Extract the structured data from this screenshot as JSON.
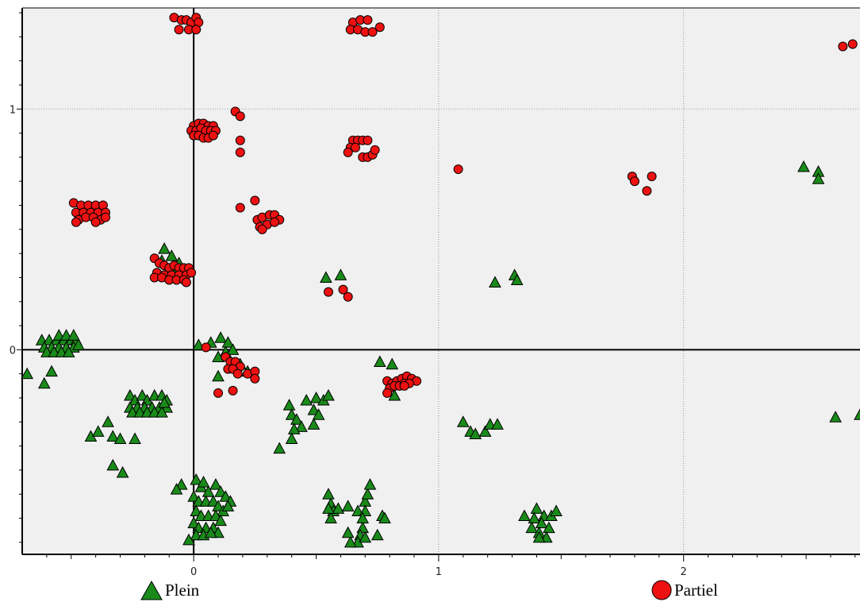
{
  "chart_data": {
    "type": "scatter",
    "title": "",
    "xlabel": "",
    "ylabel": "",
    "xlim": [
      -0.7,
      2.72
    ],
    "ylim": [
      -0.85,
      1.42
    ],
    "x_ticks": [
      0,
      1,
      2
    ],
    "x_tick_labels": [
      "0",
      "1",
      "2"
    ],
    "y_ticks": [
      0,
      1
    ],
    "y_tick_labels": [
      "0",
      "1"
    ],
    "grid": true,
    "legend_position": "bottom",
    "series": [
      {
        "name": "Plein",
        "marker": "triangle",
        "color": "#1a8a1a",
        "points": [
          [
            -0.68,
            -0.1
          ],
          [
            -0.61,
            -0.14
          ],
          [
            -0.58,
            -0.09
          ],
          [
            -0.62,
            0.04
          ],
          [
            -0.59,
            0.04
          ],
          [
            -0.56,
            0.04
          ],
          [
            -0.53,
            0.04
          ],
          [
            -0.5,
            0.04
          ],
          [
            -0.48,
            0.04
          ],
          [
            -0.61,
            0.01
          ],
          [
            -0.58,
            0.01
          ],
          [
            -0.55,
            0.01
          ],
          [
            -0.52,
            0.01
          ],
          [
            -0.49,
            0.01
          ],
          [
            -0.47,
            0.02
          ],
          [
            -0.6,
            -0.01
          ],
          [
            -0.57,
            -0.01
          ],
          [
            -0.54,
            -0.01
          ],
          [
            -0.51,
            -0.01
          ],
          [
            -0.55,
            0.06
          ],
          [
            -0.52,
            0.06
          ],
          [
            -0.49,
            0.06
          ],
          [
            -0.42,
            -0.36
          ],
          [
            -0.39,
            -0.34
          ],
          [
            -0.35,
            -0.3
          ],
          [
            -0.33,
            -0.36
          ],
          [
            -0.3,
            -0.37
          ],
          [
            -0.24,
            -0.37
          ],
          [
            -0.33,
            -0.48
          ],
          [
            -0.29,
            -0.51
          ],
          [
            -0.26,
            -0.19
          ],
          [
            -0.24,
            -0.21
          ],
          [
            -0.21,
            -0.19
          ],
          [
            -0.19,
            -0.21
          ],
          [
            -0.16,
            -0.19
          ],
          [
            -0.13,
            -0.19
          ],
          [
            -0.11,
            -0.21
          ],
          [
            -0.26,
            -0.24
          ],
          [
            -0.23,
            -0.24
          ],
          [
            -0.2,
            -0.24
          ],
          [
            -0.17,
            -0.24
          ],
          [
            -0.14,
            -0.24
          ],
          [
            -0.11,
            -0.24
          ],
          [
            -0.25,
            -0.26
          ],
          [
            -0.22,
            -0.26
          ],
          [
            -0.19,
            -0.26
          ],
          [
            -0.16,
            -0.26
          ],
          [
            -0.13,
            -0.26
          ],
          [
            -0.12,
            -0.22
          ],
          [
            -0.12,
            0.42
          ],
          [
            -0.09,
            0.39
          ],
          [
            -0.06,
            0.36
          ],
          [
            -0.13,
            0.37
          ],
          [
            -0.08,
            0.33
          ],
          [
            0.01,
            -0.54
          ],
          [
            0.03,
            -0.57
          ],
          [
            0.06,
            -0.59
          ],
          [
            0.09,
            -0.56
          ],
          [
            0.11,
            -0.59
          ],
          [
            0.13,
            -0.61
          ],
          [
            0.15,
            -0.63
          ],
          [
            0.0,
            -0.61
          ],
          [
            0.02,
            -0.63
          ],
          [
            0.05,
            -0.63
          ],
          [
            0.08,
            -0.63
          ],
          [
            0.1,
            -0.65
          ],
          [
            0.12,
            -0.67
          ],
          [
            0.14,
            -0.65
          ],
          [
            0.01,
            -0.67
          ],
          [
            0.03,
            -0.69
          ],
          [
            0.06,
            -0.69
          ],
          [
            0.09,
            -0.69
          ],
          [
            0.11,
            -0.71
          ],
          [
            0.0,
            -0.72
          ],
          [
            0.02,
            -0.74
          ],
          [
            0.05,
            -0.74
          ],
          [
            0.08,
            -0.74
          ],
          [
            0.1,
            -0.76
          ],
          [
            0.01,
            -0.77
          ],
          [
            0.04,
            -0.77
          ],
          [
            0.07,
            -0.76
          ],
          [
            -0.02,
            -0.79
          ],
          [
            -0.05,
            -0.56
          ],
          [
            -0.07,
            -0.58
          ],
          [
            0.04,
            -0.55
          ],
          [
            0.02,
            0.02
          ],
          [
            0.07,
            0.03
          ],
          [
            0.11,
            0.05
          ],
          [
            0.14,
            0.03
          ],
          [
            0.13,
            -0.01
          ],
          [
            0.1,
            -0.03
          ],
          [
            0.16,
            0.0
          ],
          [
            0.1,
            -0.11
          ],
          [
            0.19,
            -0.06
          ],
          [
            0.22,
            -0.09
          ],
          [
            0.35,
            -0.41
          ],
          [
            0.39,
            -0.23
          ],
          [
            0.4,
            -0.27
          ],
          [
            0.42,
            -0.29
          ],
          [
            0.44,
            -0.32
          ],
          [
            0.41,
            -0.33
          ],
          [
            0.4,
            -0.37
          ],
          [
            0.46,
            -0.21
          ],
          [
            0.5,
            -0.2
          ],
          [
            0.49,
            -0.25
          ],
          [
            0.51,
            -0.27
          ],
          [
            0.53,
            -0.21
          ],
          [
            0.55,
            -0.19
          ],
          [
            0.49,
            -0.31
          ],
          [
            0.55,
            -0.6
          ],
          [
            0.56,
            -0.64
          ],
          [
            0.57,
            -0.67
          ],
          [
            0.59,
            -0.66
          ],
          [
            0.56,
            -0.7
          ],
          [
            0.55,
            -0.66
          ],
          [
            0.63,
            -0.65
          ],
          [
            0.67,
            -0.67
          ],
          [
            0.7,
            -0.63
          ],
          [
            0.71,
            -0.6
          ],
          [
            0.72,
            -0.56
          ],
          [
            0.7,
            -0.67
          ],
          [
            0.69,
            -0.74
          ],
          [
            0.68,
            -0.77
          ],
          [
            0.67,
            -0.8
          ],
          [
            0.64,
            -0.8
          ],
          [
            0.63,
            -0.76
          ],
          [
            0.7,
            -0.78
          ],
          [
            0.75,
            -0.77
          ],
          [
            0.77,
            -0.69
          ],
          [
            0.78,
            -0.7
          ],
          [
            0.69,
            -0.7
          ],
          [
            0.54,
            0.3
          ],
          [
            0.6,
            0.31
          ],
          [
            0.76,
            -0.05
          ],
          [
            0.81,
            -0.06
          ],
          [
            0.82,
            -0.19
          ],
          [
            1.1,
            -0.3
          ],
          [
            1.13,
            -0.34
          ],
          [
            1.15,
            -0.35
          ],
          [
            1.19,
            -0.34
          ],
          [
            1.21,
            -0.31
          ],
          [
            1.24,
            -0.31
          ],
          [
            1.23,
            0.28
          ],
          [
            1.31,
            0.31
          ],
          [
            1.32,
            0.29
          ],
          [
            1.4,
            -0.66
          ],
          [
            1.43,
            -0.69
          ],
          [
            1.46,
            -0.69
          ],
          [
            1.48,
            -0.67
          ],
          [
            1.39,
            -0.7
          ],
          [
            1.42,
            -0.72
          ],
          [
            1.45,
            -0.74
          ],
          [
            1.38,
            -0.74
          ],
          [
            1.41,
            -0.76
          ],
          [
            1.44,
            -0.78
          ],
          [
            1.35,
            -0.69
          ],
          [
            1.41,
            -0.78
          ],
          [
            2.49,
            0.76
          ],
          [
            2.55,
            0.74
          ],
          [
            2.55,
            0.71
          ],
          [
            2.62,
            -0.28
          ],
          [
            2.72,
            -0.27
          ]
        ]
      },
      {
        "name": "Partiel",
        "marker": "circle",
        "color": "#ee1111",
        "points": [
          [
            -0.08,
            1.38
          ],
          [
            -0.05,
            1.37
          ],
          [
            -0.03,
            1.37
          ],
          [
            -0.01,
            1.36
          ],
          [
            0.01,
            1.38
          ],
          [
            0.02,
            1.36
          ],
          [
            -0.06,
            1.33
          ],
          [
            -0.02,
            1.33
          ],
          [
            0.01,
            1.33
          ],
          [
            0.0,
            0.93
          ],
          [
            0.02,
            0.94
          ],
          [
            0.04,
            0.94
          ],
          [
            0.06,
            0.93
          ],
          [
            0.08,
            0.93
          ],
          [
            -0.01,
            0.91
          ],
          [
            0.01,
            0.91
          ],
          [
            0.03,
            0.92
          ],
          [
            0.05,
            0.91
          ],
          [
            0.07,
            0.91
          ],
          [
            0.09,
            0.91
          ],
          [
            0.0,
            0.89
          ],
          [
            0.02,
            0.89
          ],
          [
            0.04,
            0.88
          ],
          [
            0.06,
            0.88
          ],
          [
            0.08,
            0.89
          ],
          [
            0.17,
            0.99
          ],
          [
            0.19,
            0.97
          ],
          [
            0.19,
            0.87
          ],
          [
            0.19,
            0.82
          ],
          [
            0.19,
            0.59
          ],
          [
            0.25,
            0.62
          ],
          [
            0.26,
            0.54
          ],
          [
            0.28,
            0.55
          ],
          [
            0.31,
            0.56
          ],
          [
            0.33,
            0.56
          ],
          [
            0.35,
            0.54
          ],
          [
            0.27,
            0.51
          ],
          [
            0.3,
            0.52
          ],
          [
            0.33,
            0.53
          ],
          [
            0.28,
            0.5
          ],
          [
            -0.49,
            0.61
          ],
          [
            -0.46,
            0.6
          ],
          [
            -0.43,
            0.6
          ],
          [
            -0.4,
            0.6
          ],
          [
            -0.37,
            0.6
          ],
          [
            -0.48,
            0.57
          ],
          [
            -0.45,
            0.57
          ],
          [
            -0.42,
            0.57
          ],
          [
            -0.39,
            0.57
          ],
          [
            -0.36,
            0.57
          ],
          [
            -0.47,
            0.54
          ],
          [
            -0.44,
            0.55
          ],
          [
            -0.41,
            0.55
          ],
          [
            -0.38,
            0.54
          ],
          [
            -0.36,
            0.55
          ],
          [
            -0.48,
            0.53
          ],
          [
            -0.4,
            0.53
          ],
          [
            -0.16,
            0.38
          ],
          [
            -0.14,
            0.36
          ],
          [
            -0.12,
            0.35
          ],
          [
            -0.1,
            0.34
          ],
          [
            -0.08,
            0.35
          ],
          [
            -0.06,
            0.34
          ],
          [
            -0.04,
            0.34
          ],
          [
            -0.02,
            0.34
          ],
          [
            -0.15,
            0.32
          ],
          [
            -0.12,
            0.31
          ],
          [
            -0.09,
            0.31
          ],
          [
            -0.06,
            0.31
          ],
          [
            -0.03,
            0.31
          ],
          [
            -0.01,
            0.32
          ],
          [
            -0.16,
            0.3
          ],
          [
            -0.13,
            0.3
          ],
          [
            -0.1,
            0.29
          ],
          [
            -0.07,
            0.29
          ],
          [
            -0.04,
            0.29
          ],
          [
            -0.03,
            0.28
          ],
          [
            0.65,
            0.87
          ],
          [
            0.67,
            0.87
          ],
          [
            0.69,
            0.87
          ],
          [
            0.71,
            0.87
          ],
          [
            0.64,
            0.84
          ],
          [
            0.66,
            0.84
          ],
          [
            0.63,
            0.82
          ],
          [
            0.69,
            0.8
          ],
          [
            0.71,
            0.8
          ],
          [
            0.73,
            0.81
          ],
          [
            0.74,
            0.83
          ],
          [
            0.65,
            1.36
          ],
          [
            0.68,
            1.37
          ],
          [
            0.71,
            1.37
          ],
          [
            0.64,
            1.33
          ],
          [
            0.67,
            1.33
          ],
          [
            0.7,
            1.32
          ],
          [
            0.73,
            1.32
          ],
          [
            0.76,
            1.34
          ],
          [
            0.55,
            0.24
          ],
          [
            0.61,
            0.25
          ],
          [
            0.63,
            0.22
          ],
          [
            0.05,
            0.01
          ],
          [
            0.13,
            -0.03
          ],
          [
            0.15,
            -0.05
          ],
          [
            0.17,
            -0.05
          ],
          [
            0.19,
            -0.07
          ],
          [
            0.14,
            -0.08
          ],
          [
            0.16,
            -0.08
          ],
          [
            0.18,
            -0.1
          ],
          [
            0.22,
            -0.1
          ],
          [
            0.25,
            -0.09
          ],
          [
            0.25,
            -0.12
          ],
          [
            0.1,
            -0.18
          ],
          [
            0.16,
            -0.17
          ],
          [
            0.79,
            -0.13
          ],
          [
            0.81,
            -0.14
          ],
          [
            0.83,
            -0.13
          ],
          [
            0.85,
            -0.12
          ],
          [
            0.87,
            -0.11
          ],
          [
            0.89,
            -0.12
          ],
          [
            0.91,
            -0.13
          ],
          [
            0.8,
            -0.16
          ],
          [
            0.82,
            -0.15
          ],
          [
            0.84,
            -0.15
          ],
          [
            0.86,
            -0.14
          ],
          [
            0.88,
            -0.14
          ],
          [
            0.79,
            -0.18
          ],
          [
            0.86,
            -0.15
          ],
          [
            1.08,
            0.75
          ],
          [
            1.79,
            0.72
          ],
          [
            1.8,
            0.7
          ],
          [
            1.87,
            0.72
          ],
          [
            1.85,
            0.66
          ],
          [
            2.65,
            1.26
          ],
          [
            2.69,
            1.27
          ]
        ]
      }
    ]
  },
  "legend": {
    "items": [
      {
        "label": "Plein"
      },
      {
        "label": "Partiel"
      }
    ]
  }
}
